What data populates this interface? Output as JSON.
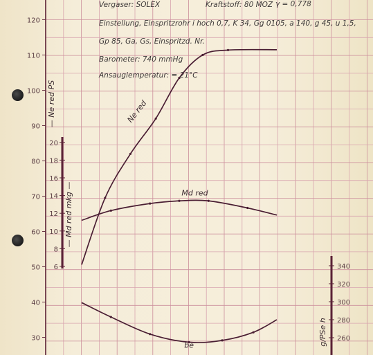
{
  "chart_data": {
    "type": "line",
    "title": "",
    "header_notes": {
      "carburetor": "Vergaser: SOLEX",
      "fuel": "Kraftstoff: 80 MOZ",
      "density": "γ = 0,778",
      "setting": "Einstellung, Einspritzrohr i hoch 0,7, K 34,   Gg 0105, a 140,   g 45,   u 1,5,",
      "jets": "Gp 85,   Ga,     Gs,     Einspritzd. Nr.",
      "barometer": "Barometer: 740 mmHg",
      "intake_temp": "Ansauglemperatur: = 21°C"
    },
    "x_axis": {
      "label": "",
      "ticks": []
    },
    "y_axes": {
      "power": {
        "label": "— Ne red   PS",
        "ticks": [
          30,
          40,
          50,
          60,
          70,
          80,
          90,
          100,
          110,
          120
        ],
        "range": [
          26,
          124
        ]
      },
      "torque": {
        "label": "— Md red   mkg —",
        "ticks": [
          6,
          8,
          10,
          12,
          14,
          16,
          18,
          20
        ]
      },
      "consumption": {
        "label": "g/PSe h",
        "ticks": [
          260,
          280,
          300,
          320,
          340
        ]
      }
    },
    "series": [
      {
        "name": "Ne red",
        "color": "#4a1e33",
        "values": [
          [
            0.0,
            50.6
          ],
          [
            0.12,
            69.5
          ],
          [
            0.25,
            82
          ],
          [
            0.38,
            92
          ],
          [
            0.5,
            103.5
          ],
          [
            0.62,
            110
          ],
          [
            0.75,
            111.4
          ],
          [
            1.0,
            111.5
          ]
        ]
      },
      {
        "name": "Md red",
        "color": "#4a1e33",
        "values": [
          [
            0.0,
            11.2
          ],
          [
            0.15,
            12.3
          ],
          [
            0.35,
            13.1
          ],
          [
            0.5,
            13.4
          ],
          [
            0.65,
            13.4
          ],
          [
            0.85,
            12.6
          ],
          [
            1.0,
            11.8
          ]
        ]
      },
      {
        "name": "be",
        "color": "#4a1e33",
        "values": [
          [
            0.0,
            299
          ],
          [
            0.15,
            283
          ],
          [
            0.35,
            264
          ],
          [
            0.55,
            255
          ],
          [
            0.72,
            257
          ],
          [
            0.88,
            266
          ],
          [
            1.0,
            280
          ]
        ]
      }
    ]
  }
}
